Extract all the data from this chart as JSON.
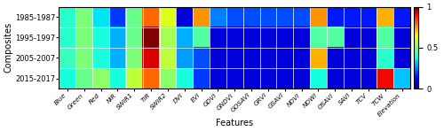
{
  "rows": [
    "1985-1987",
    "1995-1997",
    "2005-2007",
    "2015-2017"
  ],
  "cols": [
    "Blue",
    "Green",
    "Red",
    "NIR",
    "SWIR1",
    "TIR",
    "SWIR2",
    "DVI",
    "EVI",
    "GDVI",
    "GNDVI",
    "GOSAVI",
    "GRVI",
    "GSAVI",
    "NDVI",
    "NDWI",
    "OSAVI",
    "SAVI",
    "TCV",
    "TCW",
    "Elevation"
  ],
  "values": [
    [
      0.4,
      0.5,
      0.35,
      0.2,
      0.48,
      0.8,
      0.62,
      0.1,
      0.75,
      0.25,
      0.2,
      0.2,
      0.2,
      0.2,
      0.2,
      0.75,
      0.18,
      0.18,
      0.18,
      0.72,
      0.18
    ],
    [
      0.4,
      0.5,
      0.38,
      0.3,
      0.48,
      1.0,
      0.55,
      0.3,
      0.45,
      0.1,
      0.1,
      0.1,
      0.1,
      0.1,
      0.1,
      0.45,
      0.45,
      0.1,
      0.1,
      0.45,
      0.1
    ],
    [
      0.42,
      0.52,
      0.4,
      0.3,
      0.5,
      0.92,
      0.58,
      0.28,
      0.22,
      0.1,
      0.1,
      0.1,
      0.1,
      0.1,
      0.1,
      0.72,
      0.1,
      0.1,
      0.1,
      0.42,
      0.1
    ],
    [
      0.38,
      0.48,
      0.52,
      0.38,
      0.58,
      0.8,
      0.52,
      0.38,
      0.2,
      0.1,
      0.1,
      0.1,
      0.1,
      0.1,
      0.1,
      0.38,
      0.1,
      0.1,
      0.1,
      0.9,
      0.32
    ]
  ],
  "xlabel": "Features",
  "ylabel": "Composites",
  "colormap": "jet",
  "vmin": 0,
  "vmax": 1,
  "colorbar_ticks": [
    0,
    0.5,
    1
  ],
  "colorbar_labels": [
    "0",
    "0.5",
    "1"
  ],
  "fig_width": 5.0,
  "fig_height": 1.48,
  "dpi": 100
}
